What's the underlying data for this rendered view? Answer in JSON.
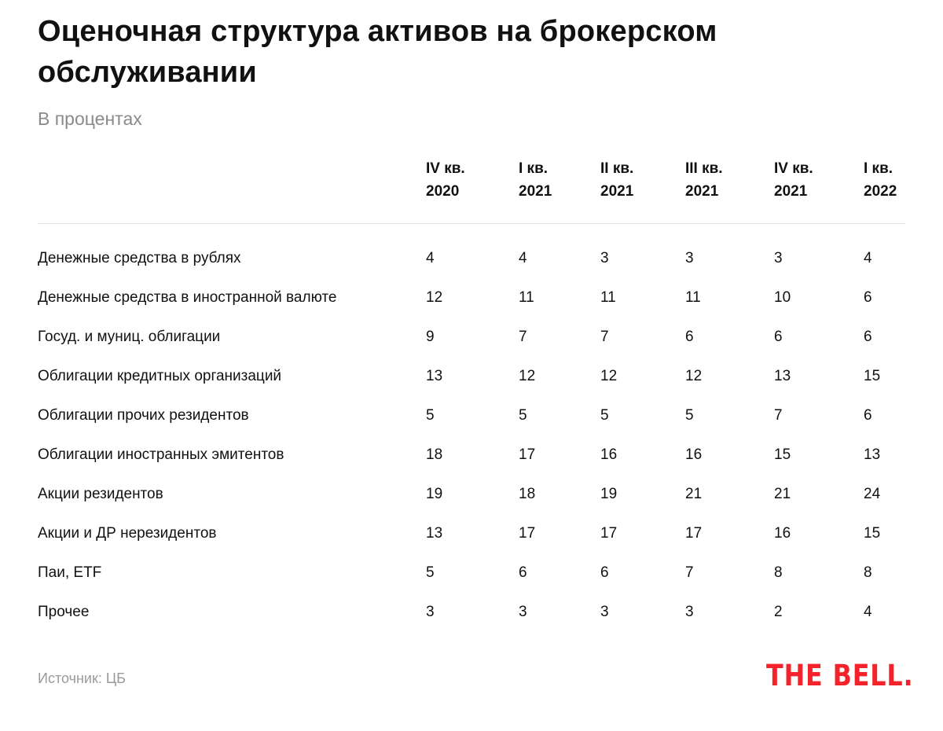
{
  "title": "Оценочная структура активов на брокерском обслуживании",
  "subtitle": "В процентах",
  "source": "Источник: ЦБ",
  "logo": "THE BELL.",
  "colors": {
    "text": "#111111",
    "muted": "#8a8a8a",
    "logo": "#f4222a"
  },
  "chart_data": {
    "type": "table",
    "columns": [
      {
        "line1": "IV кв.",
        "line2": "2020"
      },
      {
        "line1": "I кв.",
        "line2": "2021"
      },
      {
        "line1": "II кв.",
        "line2": "2021"
      },
      {
        "line1": "III кв.",
        "line2": "2021"
      },
      {
        "line1": "IV кв.",
        "line2": "2021"
      },
      {
        "line1": "I кв.",
        "line2": "2022"
      }
    ],
    "rows": [
      {
        "label": "Денежные средства в рублях",
        "values": [
          4,
          4,
          3,
          3,
          3,
          4
        ]
      },
      {
        "label": "Денежные средства в иностранной валюте",
        "values": [
          12,
          11,
          11,
          11,
          10,
          6
        ]
      },
      {
        "label": "Госуд. и муниц. облигации",
        "values": [
          9,
          7,
          7,
          6,
          6,
          6
        ]
      },
      {
        "label": "Облигации кредитных организаций",
        "values": [
          13,
          12,
          12,
          12,
          13,
          15
        ]
      },
      {
        "label": "Облигации прочих резидентов",
        "values": [
          5,
          5,
          5,
          5,
          7,
          6
        ]
      },
      {
        "label": "Облигации иностранных эмитентов",
        "values": [
          18,
          17,
          16,
          16,
          15,
          13
        ]
      },
      {
        "label": "Акции резидентов",
        "values": [
          19,
          18,
          19,
          21,
          21,
          24
        ]
      },
      {
        "label": "Акции и ДР нерезидентов",
        "values": [
          13,
          17,
          17,
          17,
          16,
          15
        ]
      },
      {
        "label": "Паи, ETF",
        "values": [
          5,
          6,
          6,
          7,
          8,
          8
        ]
      },
      {
        "label": "Прочее",
        "values": [
          3,
          3,
          3,
          3,
          2,
          4
        ]
      }
    ]
  }
}
